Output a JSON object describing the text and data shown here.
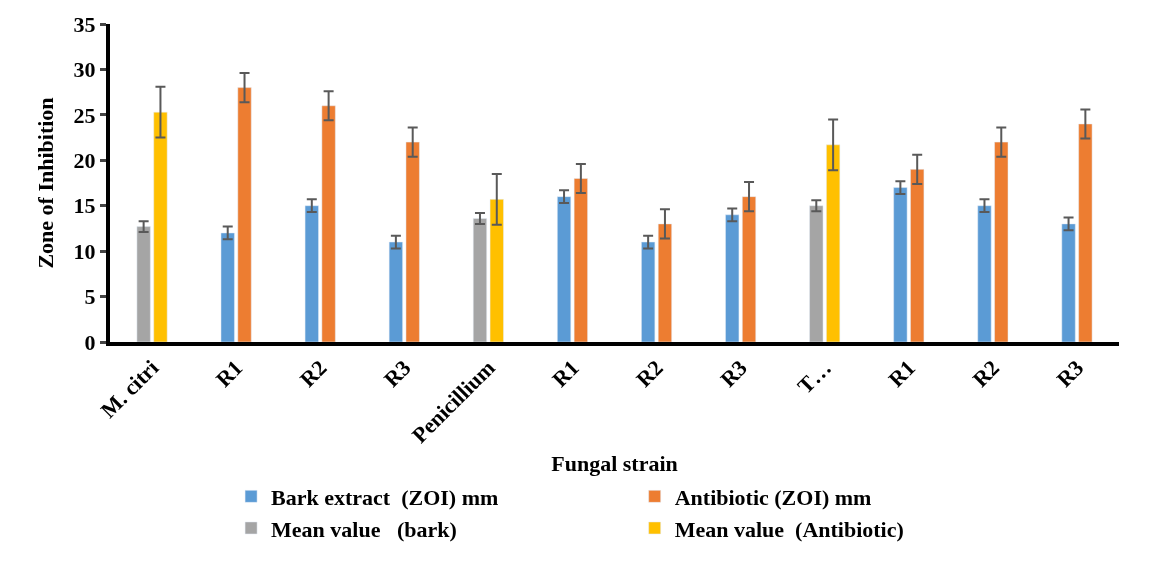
{
  "chart_data": {
    "type": "bar",
    "xlabel": "Fungal strain",
    "ylabel": "Zone of Inhibition",
    "categories": [
      "M. citri",
      "R1",
      "R2",
      "R3",
      "Penicillium",
      "R1",
      "R2",
      "R3",
      "T…",
      "R1",
      "R2",
      "R3"
    ],
    "series": [
      {
        "name": "Bark extract  (ZOI) mm",
        "color": "#5b9bd5",
        "values": [
          null,
          12,
          15,
          11,
          null,
          16,
          11,
          14,
          null,
          17,
          15,
          13
        ],
        "errors": [
          null,
          0.7,
          0.7,
          0.7,
          null,
          0.7,
          0.7,
          0.7,
          null,
          0.7,
          0.7,
          0.7
        ]
      },
      {
        "name": "Antibiotic (ZOI) mm",
        "color": "#ed7d31",
        "values": [
          null,
          28,
          26,
          22,
          null,
          18,
          13,
          16,
          null,
          19,
          22,
          24
        ],
        "errors": [
          null,
          1.6,
          1.6,
          1.6,
          null,
          1.6,
          1.6,
          1.6,
          null,
          1.6,
          1.6,
          1.6
        ]
      },
      {
        "name": "Mean value   (bark)",
        "color": "#a5a5a5",
        "values": [
          12.7,
          null,
          null,
          null,
          13.6,
          null,
          null,
          null,
          15,
          null,
          null,
          null
        ],
        "errors": [
          0.6,
          null,
          null,
          null,
          0.6,
          null,
          null,
          null,
          0.6,
          null,
          null,
          null
        ]
      },
      {
        "name": "Mean value  (Antibiotic)",
        "color": "#ffc000",
        "values": [
          25.3,
          null,
          null,
          null,
          15.7,
          null,
          null,
          null,
          21.7,
          null,
          null,
          null
        ],
        "errors": [
          2.8,
          null,
          null,
          null,
          2.8,
          null,
          null,
          null,
          2.8,
          null,
          null,
          null
        ]
      }
    ],
    "ylim": [
      0,
      35
    ],
    "yticks": [
      0,
      5,
      10,
      15,
      20,
      25,
      30,
      35
    ],
    "legend": "bottom"
  }
}
